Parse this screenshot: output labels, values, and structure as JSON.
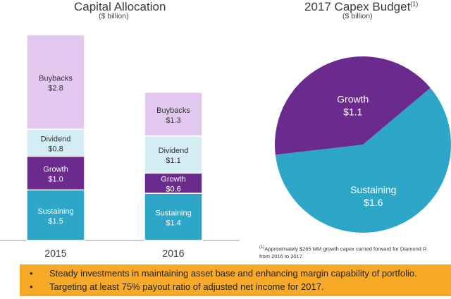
{
  "chart_data": [
    {
      "type": "bar",
      "stacked": true,
      "title": "Capital Allocation",
      "subtitle": "($ billion)",
      "categories": [
        "2015",
        "2016"
      ],
      "series": [
        {
          "name": "Sustaining",
          "values": [
            1.5,
            1.4
          ],
          "labels": [
            "$1.5",
            "$1.4"
          ],
          "color": "#2ea6c8"
        },
        {
          "name": "Growth",
          "values": [
            1.0,
            0.6
          ],
          "labels": [
            "$1.0",
            "$0.6"
          ],
          "color": "#6a2a8e"
        },
        {
          "name": "Dividend",
          "values": [
            0.8,
            1.1
          ],
          "labels": [
            "$0.8",
            "$1.1"
          ],
          "color": "#d4ecf4"
        },
        {
          "name": "Buybacks",
          "values": [
            2.8,
            1.3
          ],
          "labels": [
            "$2.8",
            "$1.3"
          ],
          "color": "#e2c8ef"
        }
      ]
    },
    {
      "type": "pie",
      "title": "2017 Capex Budget",
      "title_sup": "(1)",
      "subtitle": "($ billion)",
      "slices": [
        {
          "name": "Growth",
          "value": 1.1,
          "label": "$1.1",
          "color": "#6a2a8e"
        },
        {
          "name": "Sustaining",
          "value": 1.6,
          "label": "$1.6",
          "color": "#2ea6c8"
        }
      ]
    }
  ],
  "footnote": {
    "marker": "(1)",
    "line1": "Approximately $265 MM growth capex carried forward for Diamond R",
    "line2": "from 2016 to 2017."
  },
  "callout": {
    "bullet": "•",
    "items": [
      "Steady investments in maintaining asset base and enhancing margin capability of portfolio.",
      "Targeting at least 75% payout ratio of adjusted net income for 2017."
    ]
  }
}
